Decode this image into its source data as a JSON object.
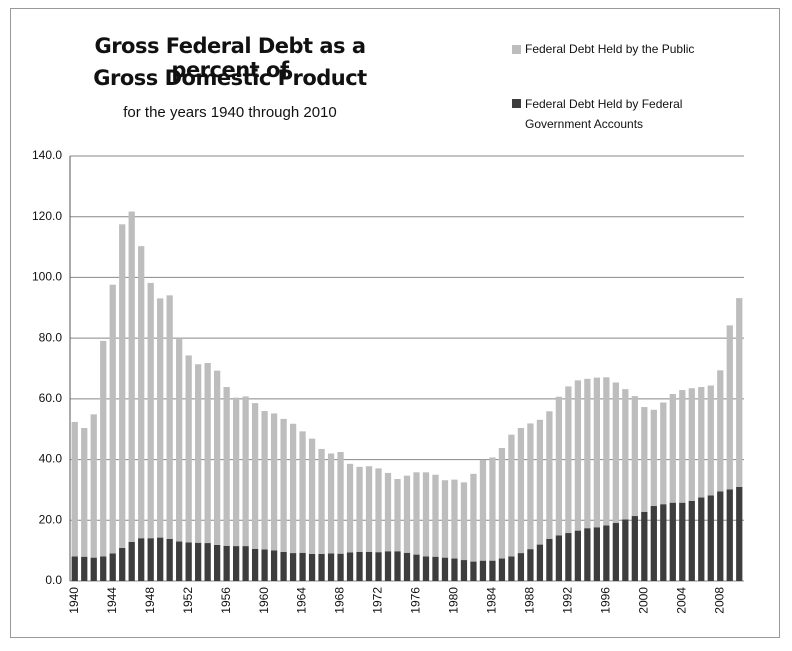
{
  "chart_data": {
    "type": "stacked-bar",
    "title": [
      "Gross Federal Debt as a percent of",
      "Gross Domestic Product"
    ],
    "subtitle": "for the years 1940 through 2010",
    "categories": [
      "1940",
      null,
      null,
      null,
      "1944",
      null,
      null,
      null,
      "1948",
      null,
      null,
      null,
      "1952",
      null,
      null,
      null,
      "1956",
      null,
      null,
      null,
      "1960",
      null,
      null,
      null,
      "1964",
      null,
      null,
      null,
      "1968",
      null,
      null,
      null,
      "1972",
      null,
      null,
      null,
      "1976",
      null,
      null,
      null,
      "1980",
      null,
      null,
      null,
      "1984",
      null,
      null,
      null,
      "1988",
      null,
      null,
      null,
      "1992",
      null,
      null,
      null,
      "1996",
      null,
      null,
      null,
      "2000",
      null,
      null,
      null,
      "2004",
      null,
      null,
      null,
      "2008",
      null,
      null
    ],
    "series": [
      {
        "name": "Federal Debt Held by Federal Government Accounts",
        "color": "#3d3d3d",
        "values": [
          8.1,
          8.0,
          7.7,
          8.1,
          9.1,
          10.9,
          12.9,
          14.1,
          14.1,
          14.3,
          13.9,
          13.0,
          12.7,
          12.6,
          12.5,
          11.9,
          11.6,
          11.5,
          11.5,
          10.6,
          10.4,
          10.1,
          9.6,
          9.2,
          9.3,
          8.9,
          8.9,
          9.1,
          9.0,
          9.4,
          9.6,
          9.6,
          9.5,
          9.8,
          9.8,
          9.3,
          8.7,
          8.1,
          8.0,
          7.7,
          7.4,
          6.9,
          6.4,
          6.7,
          6.7,
          7.4,
          8.1,
          9.2,
          10.5,
          12.0,
          13.9,
          15.0,
          15.8,
          16.6,
          17.4,
          17.7,
          18.3,
          19.1,
          20.3,
          21.4,
          22.8,
          24.7,
          25.3,
          25.8,
          25.8,
          26.4,
          27.5,
          28.2,
          29.5,
          30.2,
          31.0
        ]
      },
      {
        "name": "Federal Debt Held by the Public",
        "color": "#bdbdbd",
        "values": [
          44.3,
          42.4,
          47.2,
          71.0,
          88.5,
          106.6,
          108.8,
          96.2,
          84.1,
          78.8,
          80.2,
          66.7,
          61.6,
          58.8,
          59.3,
          57.4,
          52.3,
          48.9,
          49.3,
          48.0,
          45.6,
          45.1,
          43.8,
          42.6,
          40.0,
          38.0,
          34.6,
          32.9,
          33.5,
          29.2,
          28.0,
          28.2,
          27.6,
          25.8,
          23.8,
          25.4,
          27.1,
          27.7,
          27.0,
          25.5,
          26.0,
          25.6,
          28.9,
          33.2,
          34.0,
          36.4,
          40.1,
          41.2,
          41.4,
          41.1,
          42.0,
          45.7,
          48.3,
          49.5,
          49.2,
          49.3,
          48.8,
          46.3,
          42.9,
          39.5,
          34.5,
          31.7,
          33.5,
          35.8,
          37.1,
          37.1,
          36.4,
          36.2,
          39.9,
          54.0,
          62.2
        ]
      }
    ],
    "ylim": [
      0,
      140
    ],
    "yticks": [
      {
        "value": 0,
        "label": "0.0"
      },
      {
        "value": 20,
        "label": "20.0"
      },
      {
        "value": 40,
        "label": "40.0"
      },
      {
        "value": 60,
        "label": "60.0"
      },
      {
        "value": 80,
        "label": "80.0"
      },
      {
        "value": 100,
        "label": "100.0"
      },
      {
        "value": 120,
        "label": "120.0"
      },
      {
        "value": 140,
        "label": "140.0"
      }
    ],
    "grid": true
  }
}
